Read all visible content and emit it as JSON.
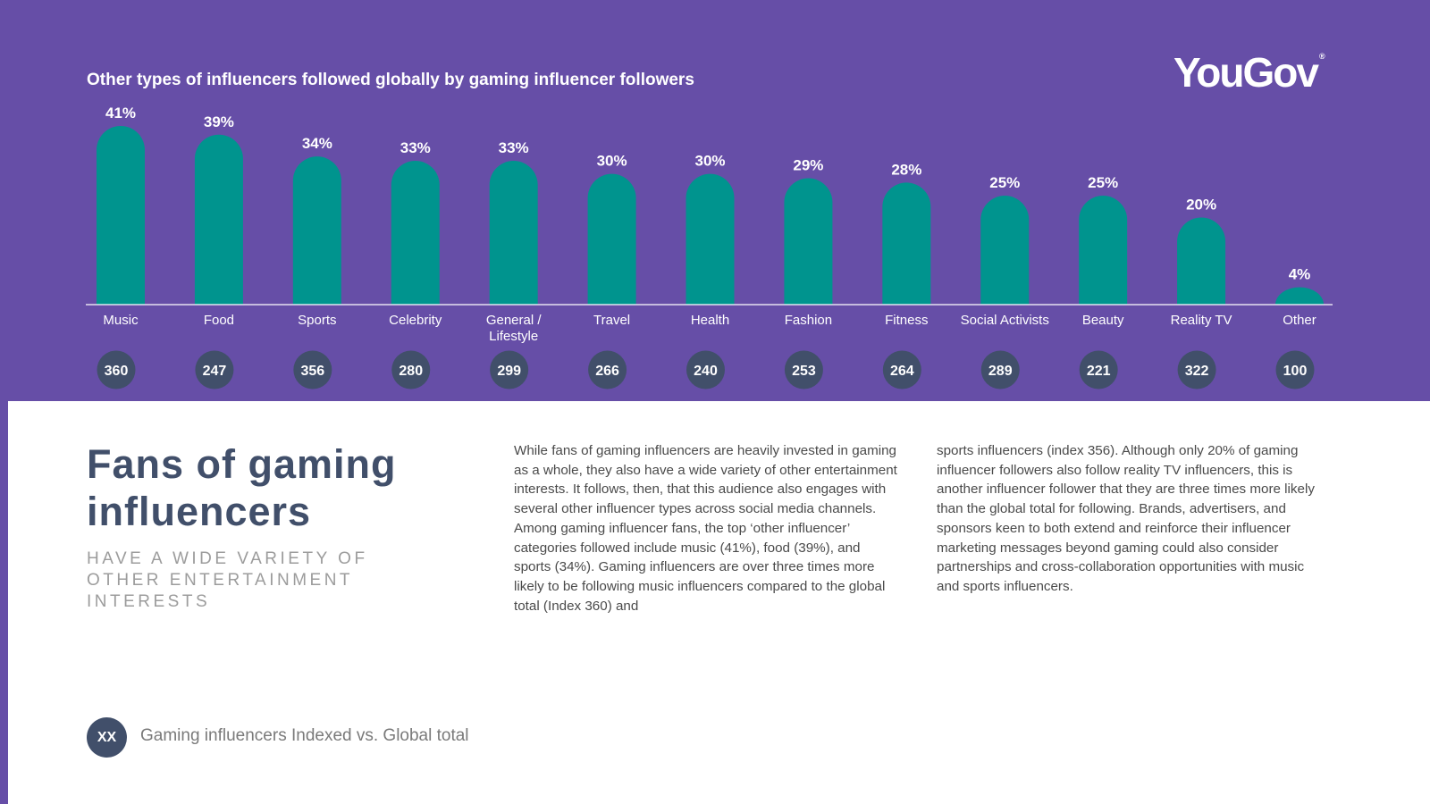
{
  "logo": "YouGov",
  "colors": {
    "background": "#664ea7",
    "bar": "#00948e",
    "index_circle": "#414f6a",
    "headline": "#414f6a"
  },
  "chart_data": {
    "type": "bar",
    "title": "Other types of influencers followed globally by gaming influencer followers",
    "categories": [
      [
        "Music"
      ],
      [
        "Food"
      ],
      [
        "Sports"
      ],
      [
        "Celebrity"
      ],
      [
        "General /",
        "Lifestyle"
      ],
      [
        "Travel"
      ],
      [
        "Health"
      ],
      [
        "Fashion"
      ],
      [
        "Fitness"
      ],
      [
        "Social Activists"
      ],
      [
        "Beauty"
      ],
      [
        "Reality TV"
      ],
      [
        "Other"
      ]
    ],
    "values": [
      41,
      39,
      34,
      33,
      33,
      30,
      30,
      29,
      28,
      25,
      25,
      20,
      4
    ],
    "value_labels": [
      "41%",
      "39%",
      "34%",
      "33%",
      "33%",
      "30%",
      "30%",
      "29%",
      "28%",
      "25%",
      "25%",
      "20%",
      "4%"
    ],
    "index_values": [
      "360",
      "247",
      "356",
      "280",
      "299",
      "266",
      "240",
      "253",
      "264",
      "289",
      "221",
      "322",
      "100"
    ],
    "ylim": [
      0,
      41
    ]
  },
  "headline": "Fans of gaming influencers",
  "subheadline": "HAVE A WIDE VARIETY OF OTHER ENTERTAINMENT INTERESTS",
  "body": {
    "col1": "While fans of gaming influencers are heavily invested in gaming as a whole, they also have a wide variety of other entertainment interests. It follows, then, that this audience also engages with several other influencer types across social media channels. Among gaming influencer fans, the top ‘other influencer’ categories followed include music (41%), food (39%), and sports (34%). Gaming influencers are over three times more likely to be following music influencers compared to the global total (Index 360) and",
    "col2": "sports influencers (index 356). Although only 20% of gaming influencer followers also follow reality TV influencers, this is another influencer follower that they are three times more likely than the global total for following. Brands, advertisers, and sponsors keen to both extend and reinforce their influencer marketing messages beyond gaming could also consider partnerships and cross-collaboration opportunities with music and sports influencers."
  },
  "legend": {
    "marker": "XX",
    "text": "Gaming influencers Indexed vs. Global total"
  }
}
